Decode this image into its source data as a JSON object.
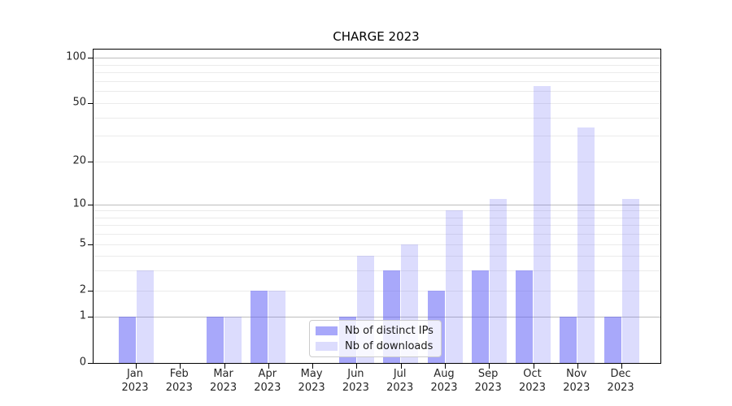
{
  "chart_data": {
    "type": "bar",
    "title": "CHARGE 2023",
    "categories": [
      "Jan",
      "Feb",
      "Mar",
      "Apr",
      "May",
      "Jun",
      "Jul",
      "Aug",
      "Sep",
      "Oct",
      "Nov",
      "Dec"
    ],
    "category_year": "2023",
    "series": [
      {
        "name": "Nb of distinct IPs",
        "values": [
          1,
          0,
          1,
          2,
          0,
          1,
          3,
          2,
          3,
          3,
          1,
          1
        ],
        "color": "#5a5af5",
        "alpha": 0.53
      },
      {
        "name": "Nb of downloads",
        "values": [
          3,
          0,
          1,
          2,
          0,
          4,
          5,
          9,
          11,
          65,
          34,
          11
        ],
        "color": "#5a5af5",
        "alpha": 0.21
      }
    ],
    "xlabel": "",
    "ylabel": "",
    "yscale": "log",
    "ylim": [
      0,
      115
    ],
    "grid": true,
    "yticks": [
      {
        "value": 0,
        "label": "0"
      },
      {
        "value": 1,
        "label": "1"
      },
      {
        "value": 2,
        "label": "2"
      },
      {
        "value": 5,
        "label": "5"
      },
      {
        "value": 10,
        "label": "10"
      },
      {
        "value": 20,
        "label": "20"
      },
      {
        "value": 50,
        "label": "50"
      },
      {
        "value": 100,
        "label": "100"
      }
    ],
    "major_grid_values": [
      1,
      10,
      100
    ],
    "minor_grid_values": [
      2,
      3,
      4,
      5,
      6,
      7,
      8,
      9,
      20,
      30,
      40,
      50,
      60,
      70,
      80,
      90
    ],
    "legend": {
      "position": "lower center"
    },
    "colors": {
      "bar_base": "#5a5af5",
      "major_grid": "#bdbdbd",
      "minor_grid": "#ebebeb",
      "axis": "#000000",
      "tick_text": "#262626",
      "legend_border": "#cccccc"
    }
  }
}
